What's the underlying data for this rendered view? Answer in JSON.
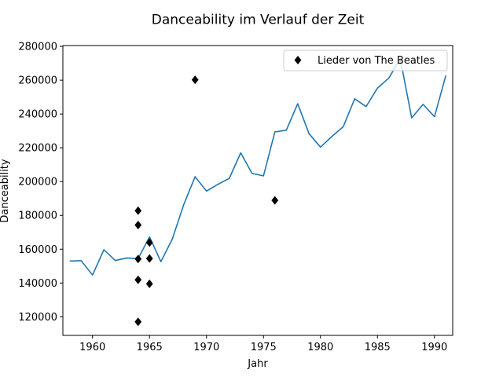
{
  "chart_data": {
    "type": "line",
    "title": "Danceability im Verlauf der Zeit",
    "xlabel": "Jahr",
    "ylabel": "Danceability",
    "xlim": [
      1957.4,
      1991.6
    ],
    "ylim": [
      109000,
      280500
    ],
    "xticks": [
      1960,
      1965,
      1970,
      1975,
      1980,
      1985,
      1990
    ],
    "yticks": [
      120000,
      140000,
      160000,
      180000,
      200000,
      220000,
      240000,
      260000,
      280000
    ],
    "grid": false,
    "legend_position": "top-right",
    "series": [
      {
        "type": "line",
        "color": "#1f77b4",
        "x": [
          1958,
          1959,
          1960,
          1961,
          1962,
          1963,
          1964,
          1965,
          1966,
          1967,
          1968,
          1969,
          1970,
          1971,
          1972,
          1973,
          1974,
          1975,
          1976,
          1977,
          1978,
          1979,
          1980,
          1981,
          1982,
          1983,
          1984,
          1985,
          1986,
          1987,
          1988,
          1989,
          1990,
          1991
        ],
        "values": [
          153000,
          153200,
          144700,
          159700,
          153300,
          154800,
          154400,
          167300,
          152600,
          166000,
          186300,
          202900,
          194400,
          198400,
          201900,
          217000,
          204800,
          203400,
          229400,
          230400,
          246100,
          228300,
          220400,
          226700,
          232500,
          249000,
          244400,
          255300,
          261300,
          272700,
          237700,
          245700,
          238400,
          262800
        ]
      },
      {
        "name": "Lieder von The Beatles",
        "type": "scatter",
        "marker": "diamond",
        "color": "#000000",
        "x": [
          1964,
          1964,
          1964,
          1964,
          1964,
          1965,
          1965,
          1965,
          1969,
          1976
        ],
        "values": [
          182800,
          174300,
          154200,
          141900,
          117000,
          163900,
          154500,
          139500,
          260200,
          188900
        ]
      }
    ]
  }
}
